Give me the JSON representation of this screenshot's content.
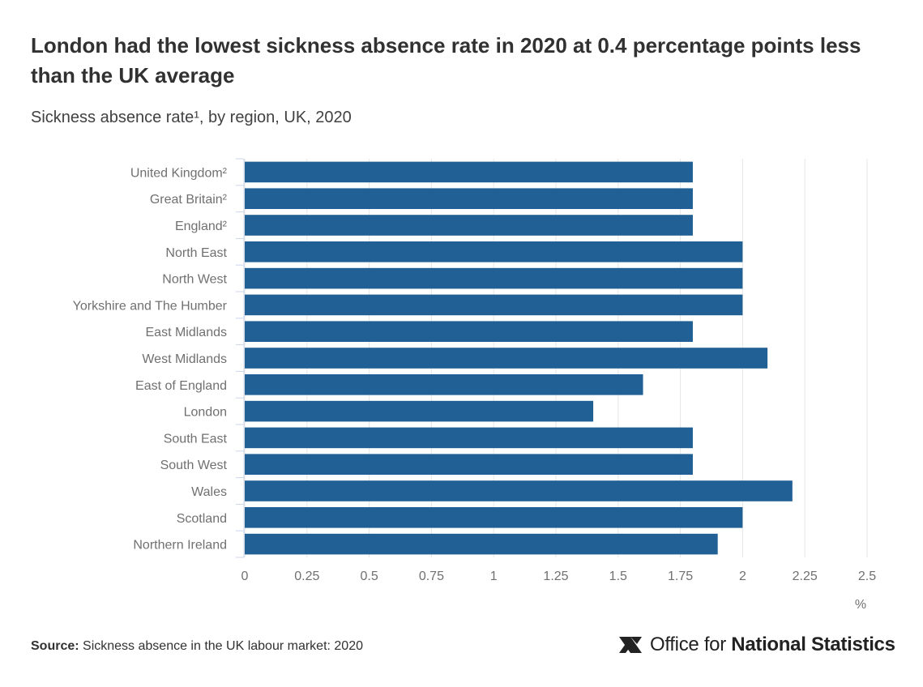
{
  "header": {
    "title": "London had the lowest sickness absence rate in 2020 at 0.4 percentage points less than the UK average",
    "subtitle": "Sickness absence rate¹, by region, UK, 2020"
  },
  "chart_data": {
    "type": "bar",
    "orientation": "horizontal",
    "categories": [
      "United Kingdom²",
      "Great Britain²",
      "England²",
      "North East",
      "North West",
      "Yorkshire and The Humber",
      "East Midlands",
      "West Midlands",
      "East of England",
      "London",
      "South East",
      "South West",
      "Wales",
      "Scotland",
      "Northern Ireland"
    ],
    "values": [
      1.8,
      1.8,
      1.8,
      2.0,
      2.0,
      2.0,
      1.8,
      2.1,
      1.6,
      1.4,
      1.8,
      1.8,
      2.2,
      2.0,
      1.9
    ],
    "xlim": [
      0,
      2.5
    ],
    "xticks": [
      "0",
      "0.25",
      "0.5",
      "0.75",
      "1",
      "1.25",
      "1.5",
      "1.75",
      "2",
      "2.25",
      "2.5"
    ],
    "xtick_values": [
      0,
      0.25,
      0.5,
      0.75,
      1,
      1.25,
      1.5,
      1.75,
      2,
      2.25,
      2.5
    ],
    "xlabel": "%",
    "grid": true,
    "bar_color": "#206095",
    "grid_color": "#e6e6e6"
  },
  "footer": {
    "source_label": "Source:",
    "source_text": " Sickness absence in the UK labour market: 2020",
    "logo_text_regular": "Office for ",
    "logo_text_bold": "National Statistics",
    "logo_icon": "ons-logo-icon"
  }
}
